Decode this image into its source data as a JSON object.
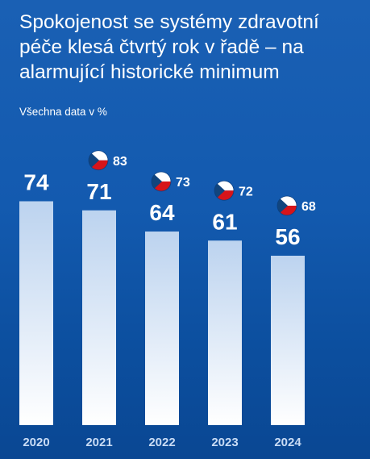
{
  "colors": {
    "bar_top": "#bcd3ef",
    "bar_bottom": "#ffffff",
    "year_label": "#c9dcf5",
    "text": "#ffffff",
    "flag_white": "#ffffff",
    "flag_red": "#d7141a",
    "flag_blue": "#11457e"
  },
  "icons": {
    "comparison_marker": "czech-flag-icon"
  },
  "chart_data": {
    "type": "bar",
    "title": "Spokojenost se systémy zdravotní péče klesá čtvrtý rok v řadě – na alarmující historické minimum",
    "subtitle": "Všechna data v %",
    "categories": [
      "2020",
      "2021",
      "2022",
      "2023",
      "2024"
    ],
    "series": [
      {
        "values": [
          74,
          71,
          64,
          61,
          56
        ]
      },
      {
        "values": [
          null,
          83,
          73,
          72,
          68
        ]
      }
    ],
    "value_labels": [
      "74",
      "71",
      "64",
      "61",
      "56"
    ],
    "flag_labels": [
      null,
      "83",
      "73",
      "72",
      "68"
    ],
    "ylim": [
      0,
      100
    ],
    "grid": false,
    "legend": "none"
  }
}
